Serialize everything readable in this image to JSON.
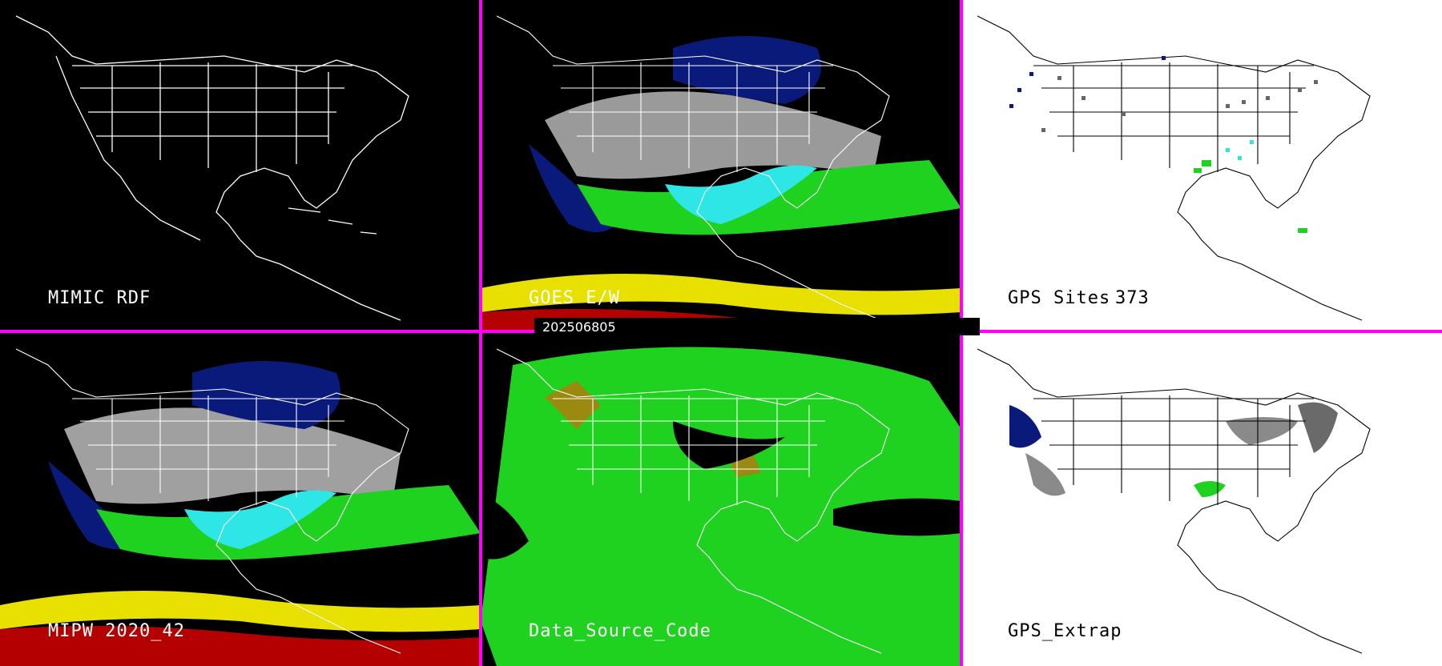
{
  "panels": {
    "mimic_rdf": {
      "label": "MIMIC RDF"
    },
    "goes_ew": {
      "label": "GOES E/W"
    },
    "gps_sites": {
      "label": "GPS Sites",
      "count": "373"
    },
    "mipw": {
      "label": "MIPW 2020_42"
    },
    "data_source_code": {
      "label": "Data_Source_Code"
    },
    "gps_extrap": {
      "label": "GPS_Extrap"
    }
  },
  "timestamp": "202506805",
  "colors": {
    "divider": "#ff00ff",
    "outline_dark_bg": "#ffffff",
    "outline_light_bg": "#000000",
    "green": "#1fd21f",
    "cyan": "#2fe6e6",
    "navy": "#0a1a7a",
    "gray": "#b4b4b4",
    "yellow": "#e8e000",
    "red": "#b40000",
    "olive": "#9a8a10"
  }
}
